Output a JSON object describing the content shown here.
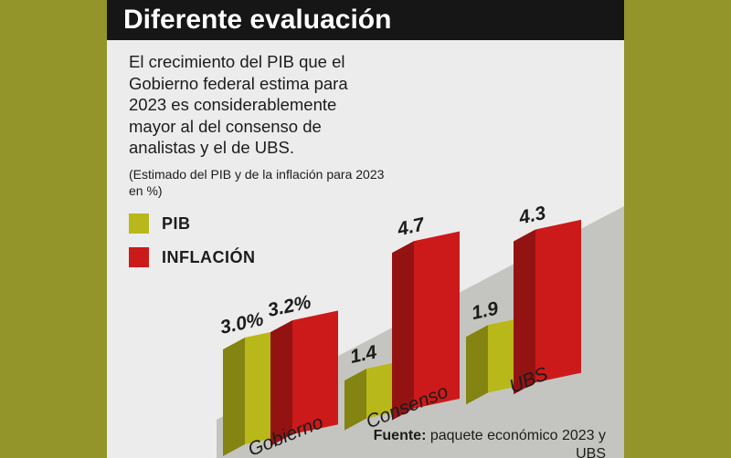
{
  "title": "Diferente evaluación",
  "intro": "El crecimiento del PIB que el Gobierno federal estima para 2023 es considerablemente mayor al del consenso de analistas y el de UBS.",
  "subtitle": "(Estimado del PIB y de la inflación para 2023 en %)",
  "legend": [
    {
      "label": "PIB",
      "color": "#b8b81a"
    },
    {
      "label": "INFLACIÓN",
      "color": "#cc1a1a"
    }
  ],
  "source": {
    "label": "Fuente:",
    "text": "paquete económico 2023 y UBS"
  },
  "chart_data": {
    "type": "bar",
    "title": "Diferente evaluación",
    "categories": [
      "Gobierno",
      "Consenso",
      "UBS"
    ],
    "series": [
      {
        "name": "PIB",
        "values": [
          3.0,
          1.4,
          1.9
        ],
        "labels": [
          "3.0%",
          "1.4",
          "1.9"
        ],
        "color": "#b8b81a"
      },
      {
        "name": "INFLACIÓN",
        "values": [
          3.2,
          4.7,
          4.3
        ],
        "labels": [
          "3.2%",
          "4.7",
          "4.3"
        ],
        "color": "#cc1a1a"
      }
    ],
    "ylabel": "%",
    "ylim": [
      0,
      5
    ]
  }
}
